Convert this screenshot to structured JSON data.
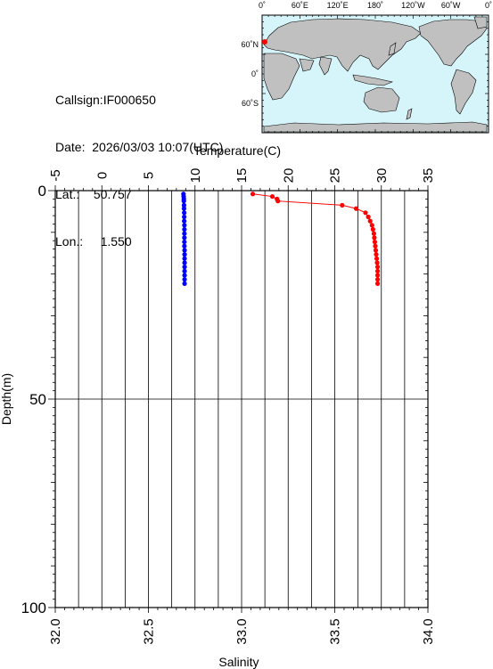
{
  "station": {
    "callsign_label": "Callsign:",
    "callsign": "IF000650",
    "date_label": "Date:",
    "date": "2026/03/03 10:07(UTC)",
    "lat_label": "Lat.:",
    "lat": "50.757",
    "lon_label": "Lon.:",
    "lon": "1.550"
  },
  "map": {
    "top_labels": [
      "0˚",
      "60˚E",
      "120˚E",
      "180˚",
      "120˚W",
      "60˚W",
      "0˚"
    ],
    "left_labels": [
      "60˚N",
      "0˚",
      "60˚S"
    ],
    "ocean_color": "#d6f5fb",
    "land_color": "#c0c0c0",
    "marker_color": "#ff0000"
  },
  "chart_data": {
    "type": "line",
    "x_top_label": "Temperature(C)",
    "x_bottom_label": "Salinity",
    "ylabel": "Depth(m)",
    "temperature_range": [
      -5,
      35
    ],
    "temperature_ticks": [
      "-5",
      "0",
      "5",
      "10",
      "15",
      "20",
      "25",
      "30",
      "35"
    ],
    "salinity_range": [
      32.0,
      34.0
    ],
    "salinity_ticks": [
      "32.0",
      "32.5",
      "33.0",
      "33.5",
      "34.0"
    ],
    "depth_range": [
      0,
      100
    ],
    "depth_ticks": [
      "0",
      "50",
      "100"
    ],
    "grid": true,
    "series": [
      {
        "color": "#ff0000",
        "axis": "temperature",
        "depth": [
          0.8,
          1.4,
          2.0,
          2.5,
          3.5,
          4.3,
          5.3,
          6.3,
          7.3,
          8.3,
          9.3,
          10.3,
          11.3,
          12.3,
          13.3,
          14.3,
          15.3,
          16.3,
          17.3,
          18.3,
          19.3,
          20.3,
          21.3,
          22.3
        ],
        "values": [
          16.2,
          18.3,
          18.8,
          18.9,
          25.8,
          27.3,
          28.3,
          28.6,
          28.8,
          29.0,
          29.1,
          29.2,
          29.25,
          29.3,
          29.35,
          29.4,
          29.45,
          29.5,
          29.55,
          29.6,
          29.6,
          29.6,
          29.6,
          29.6
        ]
      },
      {
        "color": "#0000ff",
        "axis": "salinity",
        "depth": [
          0.8,
          1.4,
          2.0,
          2.5,
          3.5,
          4.3,
          5.3,
          6.3,
          7.3,
          8.3,
          9.3,
          10.3,
          11.3,
          12.3,
          13.3,
          14.3,
          15.3,
          16.3,
          17.3,
          18.3,
          19.3,
          20.3,
          21.3,
          22.3
        ],
        "values": [
          32.688,
          32.689,
          32.69,
          32.69,
          32.691,
          32.691,
          32.692,
          32.692,
          32.692,
          32.693,
          32.693,
          32.693,
          32.693,
          32.693,
          32.693,
          32.694,
          32.694,
          32.694,
          32.694,
          32.694,
          32.694,
          32.694,
          32.694,
          32.694
        ]
      }
    ]
  }
}
